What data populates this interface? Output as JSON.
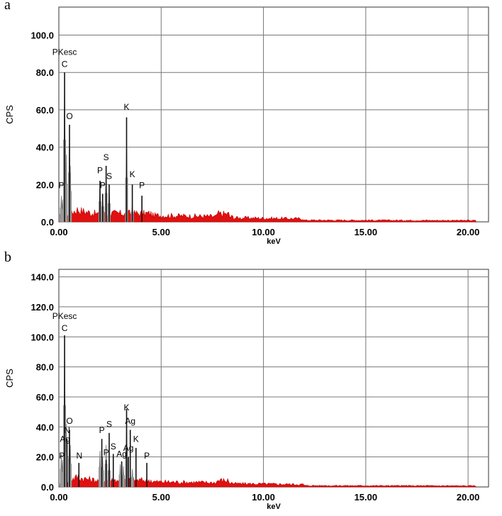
{
  "chart_data": [
    {
      "panel_label": "a",
      "type": "area",
      "xlabel": "keV",
      "ylabel": "CPS",
      "xlim": [
        0,
        21
      ],
      "ylim": [
        0,
        115
      ],
      "grid": true,
      "x_ticks": [
        "0.00",
        "5.00",
        "10.00",
        "15.00",
        "20.00"
      ],
      "y_ticks": [
        "0.0",
        "20.0",
        "40.0",
        "60.0",
        "80.0",
        "100.0"
      ],
      "annotation": "PKesc",
      "element_labels": [
        {
          "label": "C",
          "x": 0.28,
          "y": 83
        },
        {
          "label": "O",
          "x": 0.52,
          "y": 55
        },
        {
          "label": "P",
          "x": 0.12,
          "y": 18
        },
        {
          "label": "P",
          "x": 2.01,
          "y": 26
        },
        {
          "label": "S",
          "x": 2.31,
          "y": 33
        },
        {
          "label": "P",
          "x": 2.14,
          "y": 18
        },
        {
          "label": "S",
          "x": 2.46,
          "y": 23
        },
        {
          "label": "K",
          "x": 3.31,
          "y": 60
        },
        {
          "label": "K",
          "x": 3.59,
          "y": 24
        },
        {
          "label": "P",
          "x": 4.06,
          "y": 18
        }
      ],
      "marker_lines": [
        {
          "x": 0.28,
          "top": 80
        },
        {
          "x": 0.52,
          "top": 52
        },
        {
          "x": 2.01,
          "top": 22
        },
        {
          "x": 2.14,
          "top": 15
        },
        {
          "x": 2.31,
          "top": 30
        },
        {
          "x": 2.46,
          "top": 20
        },
        {
          "x": 3.31,
          "top": 56
        },
        {
          "x": 3.59,
          "top": 20
        },
        {
          "x": 4.06,
          "top": 14
        }
      ],
      "peaks": [
        {
          "x": 0.12,
          "y": 14
        },
        {
          "x": 0.18,
          "y": 12
        },
        {
          "x": 0.28,
          "y": 80
        },
        {
          "x": 0.36,
          "y": 36
        },
        {
          "x": 0.52,
          "y": 48
        },
        {
          "x": 0.56,
          "y": 30
        },
        {
          "x": 2.01,
          "y": 20
        },
        {
          "x": 2.14,
          "y": 15
        },
        {
          "x": 2.31,
          "y": 28
        },
        {
          "x": 2.46,
          "y": 18
        },
        {
          "x": 3.31,
          "y": 43
        },
        {
          "x": 3.59,
          "y": 10
        }
      ]
    },
    {
      "panel_label": "b",
      "type": "area",
      "xlabel": "keV",
      "ylabel": "CPS",
      "xlim": [
        0,
        21
      ],
      "ylim": [
        0,
        145
      ],
      "grid": true,
      "x_ticks": [
        "0.00",
        "5.00",
        "10.00",
        "15.00",
        "20.00"
      ],
      "y_ticks": [
        "0.0",
        "20.0",
        "40.0",
        "60.0",
        "80.0",
        "100.0",
        "120.0",
        "140.0"
      ],
      "annotation": "PKesc",
      "element_labels": [
        {
          "label": "C",
          "x": 0.28,
          "y": 104
        },
        {
          "label": "O",
          "x": 0.52,
          "y": 42
        },
        {
          "label": "N",
          "x": 0.4,
          "y": 36
        },
        {
          "label": "Ag",
          "x": 0.3,
          "y": 30
        },
        {
          "label": "P",
          "x": 0.15,
          "y": 19
        },
        {
          "label": "N",
          "x": 1.0,
          "y": 19
        },
        {
          "label": "P",
          "x": 2.1,
          "y": 36
        },
        {
          "label": "S",
          "x": 2.46,
          "y": 40
        },
        {
          "label": "P",
          "x": 2.31,
          "y": 21
        },
        {
          "label": "S",
          "x": 2.66,
          "y": 25
        },
        {
          "label": "Ag",
          "x": 3.07,
          "y": 20
        },
        {
          "label": "Ag",
          "x": 3.4,
          "y": 24
        },
        {
          "label": "K",
          "x": 3.31,
          "y": 51
        },
        {
          "label": "Ag",
          "x": 3.49,
          "y": 42
        },
        {
          "label": "K",
          "x": 3.77,
          "y": 30
        },
        {
          "label": "P",
          "x": 4.3,
          "y": 19
        }
      ],
      "marker_lines": [
        {
          "x": 0.28,
          "top": 101
        },
        {
          "x": 0.52,
          "top": 38
        },
        {
          "x": 0.4,
          "top": 32
        },
        {
          "x": 0.98,
          "top": 16
        },
        {
          "x": 2.1,
          "top": 32
        },
        {
          "x": 2.31,
          "top": 18
        },
        {
          "x": 2.46,
          "top": 36
        },
        {
          "x": 2.66,
          "top": 22
        },
        {
          "x": 3.07,
          "top": 17
        },
        {
          "x": 3.31,
          "top": 52
        },
        {
          "x": 3.4,
          "top": 20
        },
        {
          "x": 3.49,
          "top": 38
        },
        {
          "x": 3.77,
          "top": 26
        },
        {
          "x": 4.3,
          "top": 16
        }
      ],
      "peaks": [
        {
          "x": 0.12,
          "y": 22
        },
        {
          "x": 0.18,
          "y": 18
        },
        {
          "x": 0.28,
          "y": 99
        },
        {
          "x": 0.36,
          "y": 42
        },
        {
          "x": 0.52,
          "y": 35
        },
        {
          "x": 0.56,
          "y": 28
        },
        {
          "x": 2.01,
          "y": 24
        },
        {
          "x": 2.14,
          "y": 20
        },
        {
          "x": 2.31,
          "y": 28
        },
        {
          "x": 2.46,
          "y": 20
        },
        {
          "x": 3.0,
          "y": 15
        },
        {
          "x": 3.15,
          "y": 14
        },
        {
          "x": 3.31,
          "y": 46
        },
        {
          "x": 3.59,
          "y": 12
        }
      ]
    }
  ]
}
